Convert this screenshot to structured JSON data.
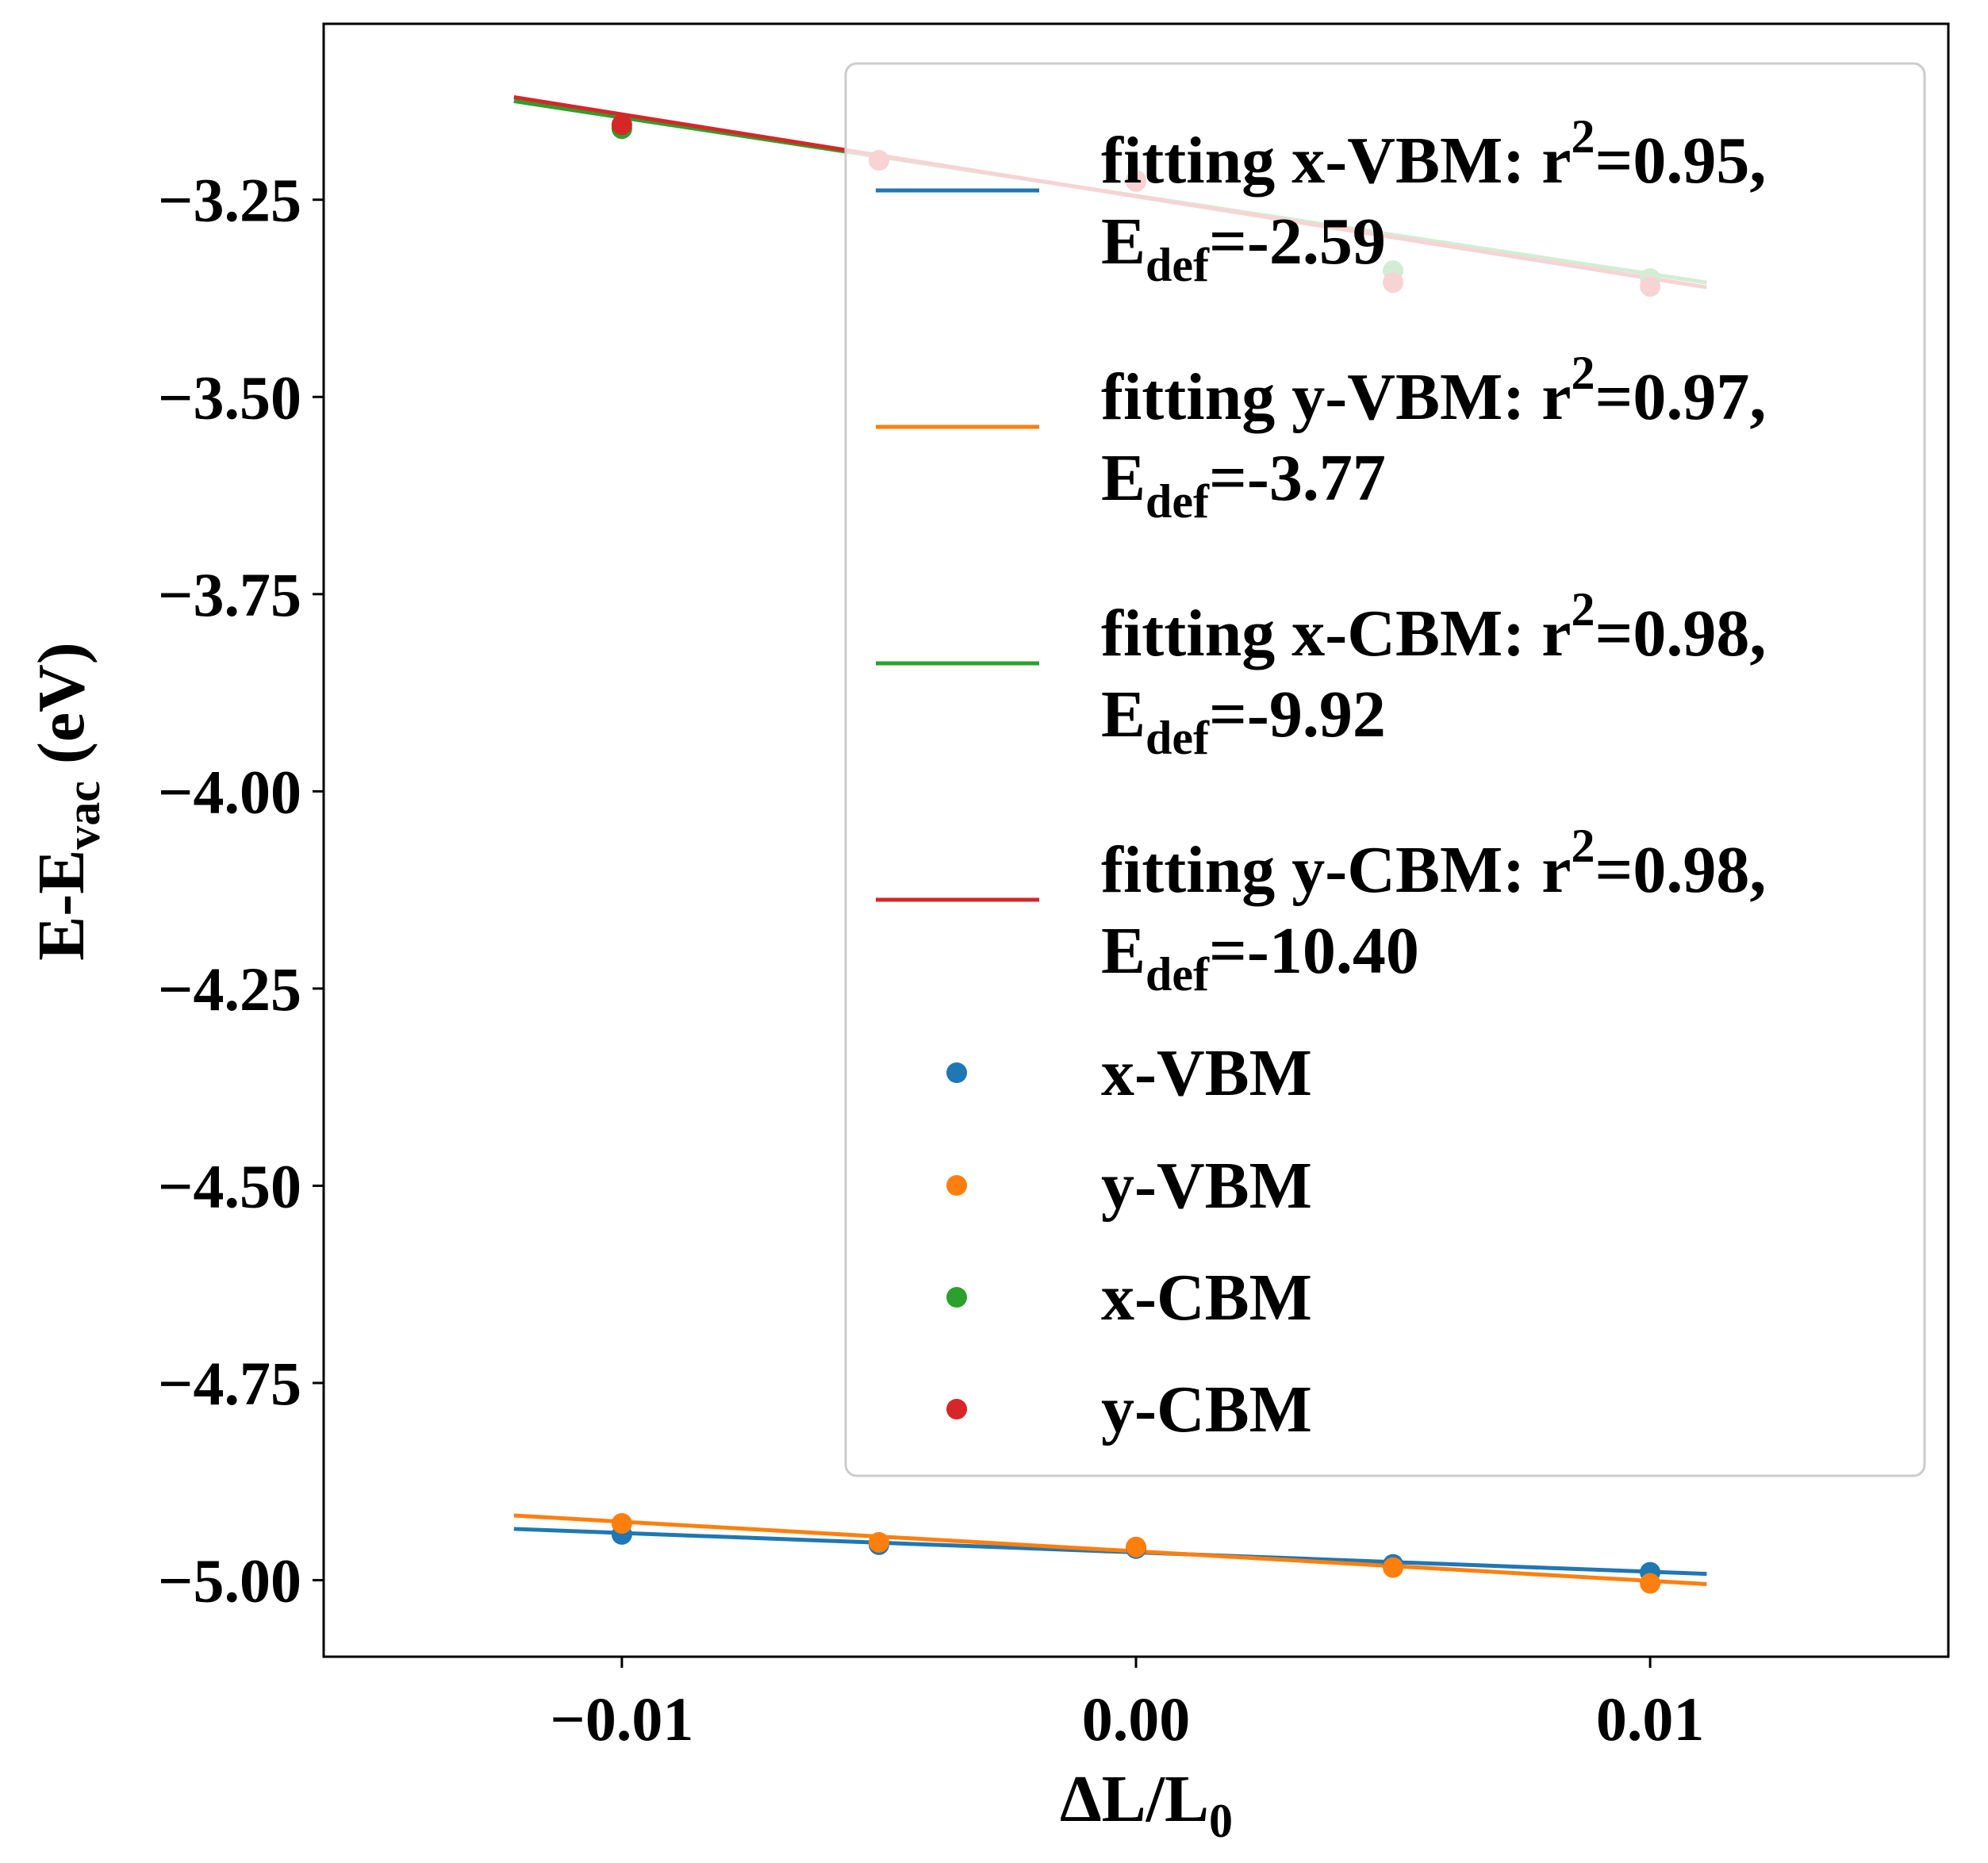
{
  "chart_data": {
    "type": "scatter",
    "xlabel": "ΔL/L0",
    "ylabel": "E-Evac (eV)",
    "xlim": [
      -0.0158,
      0.0158
    ],
    "ylim": [
      -5.097,
      -3.027
    ],
    "x_ticks": [
      -0.01,
      0.0,
      0.01
    ],
    "x_tick_labels": [
      "−0.01",
      "0.00",
      "0.01"
    ],
    "y_ticks": [
      -3.25,
      -3.5,
      -3.75,
      -4.0,
      -4.25,
      -4.5,
      -4.75,
      -5.0
    ],
    "y_tick_labels": [
      "−3.25",
      "−3.50",
      "−3.75",
      "−4.00",
      "−4.25",
      "−4.50",
      "−4.75",
      "−5.00"
    ],
    "grid": false,
    "legend_position": "upper-right",
    "x": [
      -0.01,
      -0.005,
      0.0,
      0.005,
      0.01
    ],
    "series": [
      {
        "name": "x-VBM",
        "color": "#1f77b4",
        "points": [
          -4.942,
          -4.955,
          -4.96,
          -4.98,
          -4.99
        ],
        "fit": {
          "legend": "fitting x-VBM: r",
          "r2_text": "=0.95,",
          "edef_value": "=-2.59",
          "x_range": [
            -0.0121,
            0.0111
          ],
          "y_range": [
            -4.935,
            -4.992
          ]
        }
      },
      {
        "name": "y-VBM",
        "color": "#ff7f0e",
        "points": [
          -4.928,
          -4.952,
          -4.958,
          -4.984,
          -5.004
        ],
        "fit": {
          "legend": "fitting y-VBM: r",
          "r2_text": "=0.97,",
          "edef_value": "=-3.77",
          "x_range": [
            -0.0121,
            0.0111
          ],
          "y_range": [
            -4.918,
            -5.005
          ]
        }
      },
      {
        "name": "x-CBM",
        "color": "#2ca02c",
        "points": [
          -3.16,
          -3.2,
          -3.225,
          -3.34,
          -3.35
        ],
        "fit": {
          "legend": "fitting x-CBM: r",
          "r2_text": "=0.98,",
          "edef_value": "=-9.92",
          "x_range": [
            -0.0121,
            0.0111
          ],
          "y_range": [
            -3.125,
            -3.355
          ]
        }
      },
      {
        "name": "y-CBM",
        "color": "#d62728",
        "points": [
          -3.155,
          -3.2,
          -3.227,
          -3.355,
          -3.36
        ],
        "fit": {
          "legend": "fitting y-CBM: r",
          "r2_text": "=0.98,",
          "edef_value": "=-10.40",
          "x_range": [
            -0.0121,
            0.0111
          ],
          "y_range": [
            -3.12,
            -3.361
          ]
        }
      }
    ],
    "legend_labels": {
      "exponent": "2",
      "edef_main": "E",
      "edef_sub": "def"
    }
  }
}
